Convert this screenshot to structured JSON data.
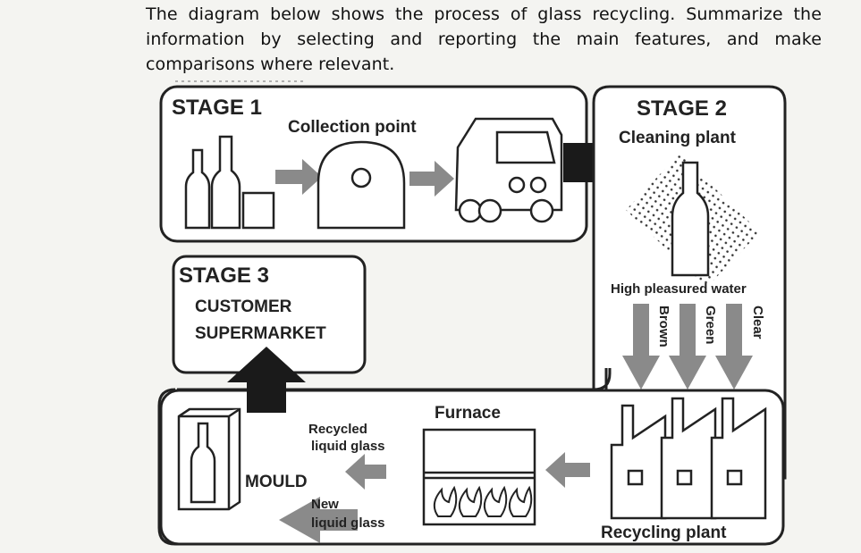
{
  "prompt": "The diagram below shows the process of glass recycling.  Summarize the information by selecting and reporting the main features, and make comparisons where relevant.",
  "stage1": {
    "title": "STAGE 1",
    "subtitle": "Collection point"
  },
  "stage2": {
    "title": "STAGE 2",
    "subtitle": "Cleaning plant",
    "water_label": "High pleasured water",
    "streams": [
      "Brown",
      "Green",
      "Clear"
    ]
  },
  "stage3": {
    "title": "STAGE 3",
    "line1": "CUSTOMER",
    "line2": "SUPERMARKET"
  },
  "bottom": {
    "recycling_plant": "Recycling plant",
    "furnace": "Furnace",
    "recycled_line1": "Recycled",
    "recycled_line2": "liquid glass",
    "new_line1": "New",
    "new_line2": "liquid glass",
    "mould": "MOULD"
  }
}
